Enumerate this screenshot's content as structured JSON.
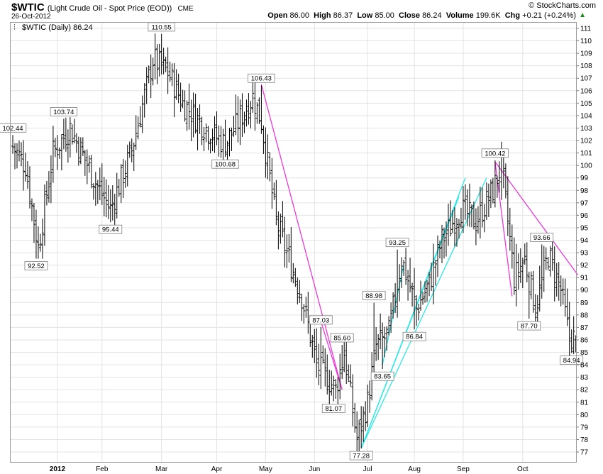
{
  "header": {
    "symbol": "$WTIC",
    "description": "(Light Crude Oil - Spot Price (EOD))",
    "exchange": "CME",
    "date": "26-Oct-2012",
    "brand": "© StockCharts.com",
    "stats": {
      "open_label": "Open",
      "open": "86.00",
      "high_label": "High",
      "high": "86.37",
      "low_label": "Low",
      "low": "85.00",
      "close_label": "Close",
      "close": "86.24",
      "volume_label": "Volume",
      "volume": "199.6K",
      "chg_label": "Chg",
      "chg": "+0.21 (+0.24%)"
    }
  },
  "chart_data": {
    "type": "bar",
    "plot_label": "$WTIC (Daily) 86.24",
    "x_label_year": "2012",
    "x_ticks": [
      "2012",
      "Feb",
      "Mar",
      "Apr",
      "May",
      "Jun",
      "Jul",
      "Aug",
      "Sep",
      "Oct"
    ],
    "y_ticks": [
      77,
      78,
      79,
      80,
      81,
      82,
      83,
      84,
      85,
      86,
      87,
      88,
      89,
      90,
      91,
      92,
      93,
      94,
      95,
      96,
      97,
      98,
      99,
      100,
      101,
      102,
      103,
      104,
      105,
      106,
      107,
      108,
      109,
      110,
      111
    ],
    "ylim": [
      76.5,
      111.3
    ],
    "axis_side": "right",
    "grid": true,
    "price_anchors": [
      {
        "day": 0,
        "close": 101.5
      },
      {
        "day": 6,
        "close": 100.0
      },
      {
        "day": 12,
        "close": 93.4
      },
      {
        "day": 19,
        "close": 101.0
      },
      {
        "day": 27,
        "close": 103.0
      },
      {
        "day": 40,
        "close": 98.3
      },
      {
        "day": 46,
        "close": 96.5
      },
      {
        "day": 56,
        "close": 101.2
      },
      {
        "day": 66,
        "close": 108.5
      },
      {
        "day": 73,
        "close": 107.5
      },
      {
        "day": 80,
        "close": 105.0
      },
      {
        "day": 92,
        "close": 102.8
      },
      {
        "day": 100,
        "close": 101.7
      },
      {
        "day": 113,
        "close": 105.5
      },
      {
        "day": 117,
        "close": 103.5
      },
      {
        "day": 124,
        "close": 95.5
      },
      {
        "day": 136,
        "close": 89.5
      },
      {
        "day": 143,
        "close": 84.0
      },
      {
        "day": 152,
        "close": 82.0
      },
      {
        "day": 156,
        "close": 85.0
      },
      {
        "day": 162,
        "close": 78.0
      },
      {
        "day": 167,
        "close": 81.0
      },
      {
        "day": 171,
        "close": 85.5
      },
      {
        "day": 177,
        "close": 86.5
      },
      {
        "day": 183,
        "close": 92.5
      },
      {
        "day": 190,
        "close": 88.5
      },
      {
        "day": 196,
        "close": 90.5
      },
      {
        "day": 202,
        "close": 94.0
      },
      {
        "day": 211,
        "close": 96.5
      },
      {
        "day": 218,
        "close": 95.5
      },
      {
        "day": 226,
        "close": 98.0
      },
      {
        "day": 230,
        "close": 100.0
      },
      {
        "day": 236,
        "close": 91.0
      },
      {
        "day": 241,
        "close": 92.5
      },
      {
        "day": 246,
        "close": 88.5
      },
      {
        "day": 252,
        "close": 92.8
      },
      {
        "day": 258,
        "close": 90.0
      },
      {
        "day": 262,
        "close": 86.0
      },
      {
        "day": 265,
        "close": 86.24
      }
    ],
    "labeled_points": [
      {
        "label": "102.44",
        "day": 0,
        "value": 102.44,
        "pos": "above"
      },
      {
        "label": "92.52",
        "day": 11,
        "value": 92.52,
        "pos": "below"
      },
      {
        "label": "103.74",
        "day": 24,
        "value": 103.74,
        "pos": "above"
      },
      {
        "label": "95.44",
        "day": 46,
        "value": 95.44,
        "pos": "below"
      },
      {
        "label": "110.55",
        "day": 70,
        "value": 110.55,
        "pos": "above"
      },
      {
        "label": "100.68",
        "day": 100,
        "value": 100.68,
        "pos": "below"
      },
      {
        "label": "106.43",
        "day": 117,
        "value": 106.43,
        "pos": "above"
      },
      {
        "label": "87.03",
        "day": 145,
        "value": 87.03,
        "pos": "above"
      },
      {
        "label": "81.07",
        "day": 151,
        "value": 81.07,
        "pos": "below"
      },
      {
        "label": "85.60",
        "day": 155,
        "value": 85.6,
        "pos": "above"
      },
      {
        "label": "77.28",
        "day": 164,
        "value": 77.28,
        "pos": "below"
      },
      {
        "label": "88.98",
        "day": 170,
        "value": 88.98,
        "pos": "above"
      },
      {
        "label": "83.65",
        "day": 174,
        "value": 83.65,
        "pos": "below"
      },
      {
        "label": "93.25",
        "day": 181,
        "value": 93.25,
        "pos": "above"
      },
      {
        "label": "86.84",
        "day": 189,
        "value": 86.84,
        "pos": "below"
      },
      {
        "label": "100.42",
        "day": 227,
        "value": 100.42,
        "pos": "above"
      },
      {
        "label": "87.70",
        "day": 243,
        "value": 87.7,
        "pos": "below"
      },
      {
        "label": "93.66",
        "day": 249,
        "value": 93.66,
        "pos": "above"
      },
      {
        "label": "84.94",
        "day": 263,
        "value": 84.94,
        "pos": "below"
      }
    ],
    "trendlines": [
      {
        "color": "#e83ad8",
        "from": {
          "day": 117,
          "value": 106.5
        },
        "to": {
          "day": 155,
          "value": 82.0
        }
      },
      {
        "color": "#e83ad8",
        "from": {
          "day": 145,
          "value": 87.5
        },
        "to": {
          "day": 155,
          "value": 82.0
        }
      },
      {
        "color": "#e83ad8",
        "from": {
          "day": 227,
          "value": 100.3
        },
        "to": {
          "day": 266,
          "value": 91.2
        }
      },
      {
        "color": "#e83ad8",
        "from": {
          "day": 227,
          "value": 100.3
        },
        "to": {
          "day": 235,
          "value": 89.5
        }
      },
      {
        "color": "#2ee6e6",
        "from": {
          "day": 164,
          "value": 77.3
        },
        "to": {
          "day": 213,
          "value": 99.0
        }
      },
      {
        "color": "#2ee6e6",
        "from": {
          "day": 164,
          "value": 77.3
        },
        "to": {
          "day": 210,
          "value": 97.5
        }
      },
      {
        "color": "#2ee6e6",
        "from": {
          "day": 164,
          "value": 77.3
        },
        "to": {
          "day": 223,
          "value": 99.0
        }
      },
      {
        "color": "#2ee6e6",
        "from": {
          "day": 174,
          "value": 84.0
        },
        "to": {
          "day": 184,
          "value": 92.0
        }
      }
    ],
    "series_color": "#000000"
  }
}
